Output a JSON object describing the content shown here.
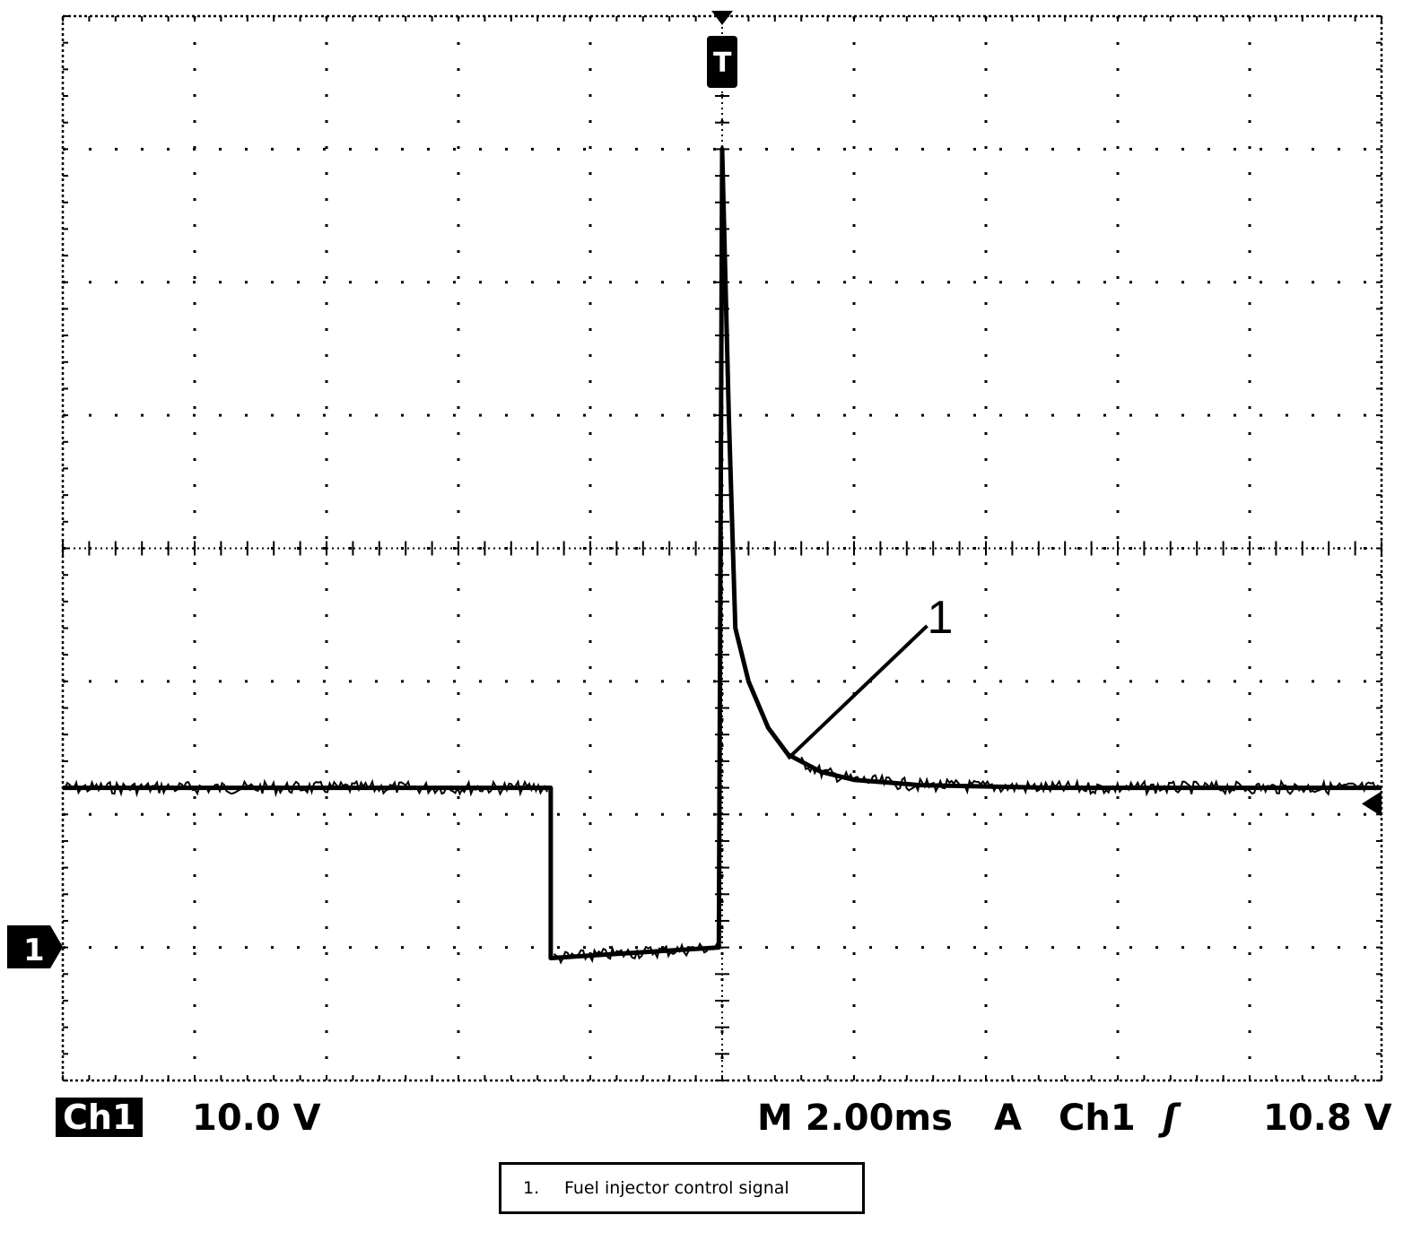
{
  "chart_data": {
    "type": "line",
    "title": "",
    "xlabel": "",
    "ylabel": "",
    "grid": true,
    "divisions": {
      "x": 10,
      "y": 8
    },
    "units": {
      "x": "ms",
      "y": "V"
    },
    "xlim": [
      -10.0,
      10.0
    ],
    "ylim": [
      -10.0,
      70.0
    ],
    "series": [
      {
        "name": "",
        "color": "#000000",
        "x": [
          -10.0,
          -2.6,
          -2.6,
          -0.05,
          0.0,
          0.1,
          0.2,
          0.4,
          0.7,
          1.0,
          1.5,
          2.0,
          3.0,
          5.0,
          10.0
        ],
        "y": [
          12.0,
          12.0,
          -0.8,
          0.0,
          60.0,
          40.0,
          24.0,
          20.0,
          16.5,
          14.5,
          13.2,
          12.6,
          12.2,
          12.0,
          12.0
        ]
      }
    ],
    "annotations": [
      {
        "text": "1",
        "target": {
          "x": 1.0,
          "y": 14.2
        }
      }
    ]
  },
  "scope": {
    "channel_marker": "1",
    "trigger_marker": "T",
    "channel_badge": "Ch1",
    "volts_per_div": "10.0 V",
    "timebase": "M 2.00ms",
    "trigger_mode": "A",
    "trigger_source": "Ch1",
    "trigger_slope": "ʃ",
    "trigger_level": "10.8 V",
    "trigger_level_value": 10.8
  },
  "caption": {
    "number": "1.",
    "text": "Fuel injector control signal"
  }
}
